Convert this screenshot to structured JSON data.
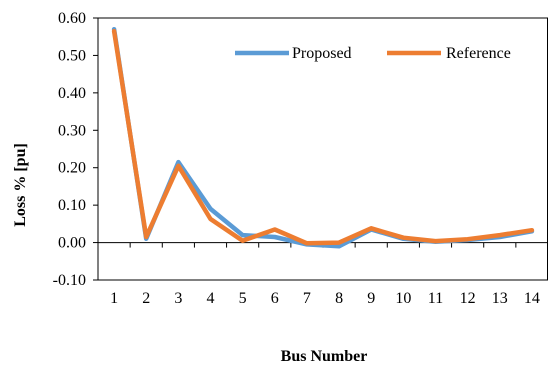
{
  "chart_data": {
    "type": "line",
    "title": "",
    "xlabel": "Bus Number",
    "ylabel": "Loss % [pu]",
    "categories": [
      "1",
      "2",
      "3",
      "4",
      "5",
      "6",
      "7",
      "8",
      "9",
      "10",
      "11",
      "12",
      "13",
      "14"
    ],
    "ylim": [
      -0.1,
      0.6
    ],
    "yticks": [
      "-0.10",
      "0.00",
      "0.10",
      "0.20",
      "0.30",
      "0.40",
      "0.50",
      "0.60"
    ],
    "ytick_values": [
      -0.1,
      0.0,
      0.1,
      0.2,
      0.3,
      0.4,
      0.5,
      0.6
    ],
    "grid": false,
    "legend_position": "top-right",
    "series": [
      {
        "name": "Proposed",
        "color": "#5B9BD5",
        "values": [
          0.57,
          0.01,
          0.215,
          0.09,
          0.02,
          0.015,
          -0.005,
          -0.01,
          0.035,
          0.01,
          0.002,
          0.007,
          0.015,
          0.03
        ]
      },
      {
        "name": "Reference",
        "color": "#ED7D31",
        "values": [
          0.565,
          0.015,
          0.205,
          0.063,
          0.005,
          0.035,
          -0.002,
          0.0,
          0.038,
          0.013,
          0.004,
          0.009,
          0.02,
          0.033
        ]
      }
    ]
  }
}
